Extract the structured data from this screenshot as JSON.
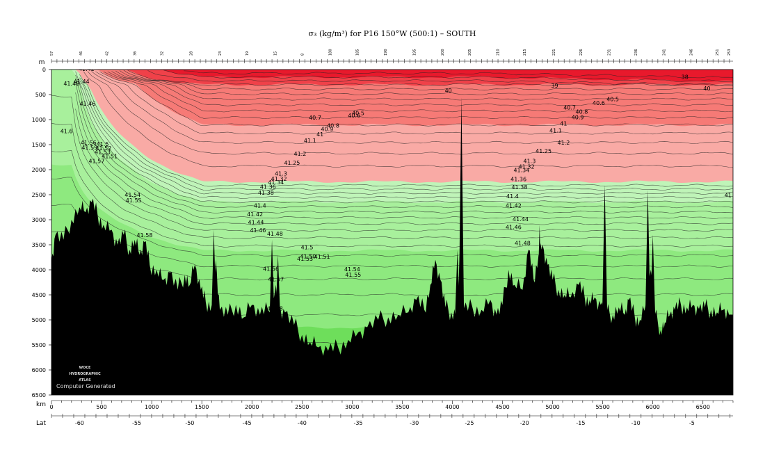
{
  "chart_data": {
    "type": "heatmap",
    "title": "σ₃ (kg/m³) for P16 150°W (500:1) – SOUTH",
    "y_unit": "m",
    "x_unit": "km",
    "lat_axis_label": "Lat",
    "xlim_km": [
      0,
      6800
    ],
    "ylim_m": [
      0,
      6500
    ],
    "depth_ticks": [
      0,
      500,
      1000,
      1500,
      2000,
      2500,
      3000,
      3500,
      4000,
      4500,
      5000,
      5500,
      6000,
      6500
    ],
    "km_ticks": [
      0,
      500,
      1000,
      1500,
      2000,
      2500,
      3000,
      3500,
      4000,
      4500,
      5000,
      5500,
      6000,
      6500
    ],
    "lat_ticks": [
      {
        "km": 280,
        "label": "-60"
      },
      {
        "km": 850,
        "label": "-55"
      },
      {
        "km": 1380,
        "label": "-50"
      },
      {
        "km": 1950,
        "label": "-45"
      },
      {
        "km": 2500,
        "label": "-40"
      },
      {
        "km": 3060,
        "label": "-35"
      },
      {
        "km": 3620,
        "label": "-30"
      },
      {
        "km": 4170,
        "label": "-25"
      },
      {
        "km": 4720,
        "label": "-20"
      },
      {
        "km": 5280,
        "label": "-15"
      },
      {
        "km": 5830,
        "label": "-10"
      },
      {
        "km": 6390,
        "label": "-5"
      }
    ],
    "stations": [
      {
        "km": 0,
        "label": "57"
      },
      {
        "km": 290,
        "label": "46"
      },
      {
        "km": 550,
        "label": "42"
      },
      {
        "km": 830,
        "label": "36"
      },
      {
        "km": 1100,
        "label": "32"
      },
      {
        "km": 1390,
        "label": "28"
      },
      {
        "km": 1680,
        "label": "23"
      },
      {
        "km": 1950,
        "label": "19"
      },
      {
        "km": 2230,
        "label": "15"
      },
      {
        "km": 2500,
        "label": "8"
      },
      {
        "km": 2780,
        "label": "180"
      },
      {
        "km": 3050,
        "label": "185"
      },
      {
        "km": 3330,
        "label": "190"
      },
      {
        "km": 3620,
        "label": "195"
      },
      {
        "km": 3900,
        "label": "200"
      },
      {
        "km": 4170,
        "label": "205"
      },
      {
        "km": 4450,
        "label": "210"
      },
      {
        "km": 4720,
        "label": "215"
      },
      {
        "km": 5010,
        "label": "221"
      },
      {
        "km": 5280,
        "label": "226"
      },
      {
        "km": 5560,
        "label": "231"
      },
      {
        "km": 5830,
        "label": "236"
      },
      {
        "km": 6110,
        "label": "241"
      },
      {
        "km": 6380,
        "label": "246"
      },
      {
        "km": 6640,
        "label": "251"
      },
      {
        "km": 6760,
        "label": "253"
      }
    ],
    "color_bands": [
      {
        "sigma_max": 39.0,
        "color": "#e8192c"
      },
      {
        "sigma_max": 40.0,
        "color": "#f04149"
      },
      {
        "sigma_max": 40.7,
        "color": "#f67a76"
      },
      {
        "sigma_max": 41.2,
        "color": "#f9aaa5"
      },
      {
        "sigma_max": 41.3,
        "color": "#bff4b8"
      },
      {
        "sigma_max": 41.45,
        "color": "#a8f09c"
      },
      {
        "sigma_max": 41.55,
        "color": "#8ee97f"
      },
      {
        "sigma_max": 99,
        "color": "#6ede5b"
      }
    ],
    "contour_labels": [
      {
        "km": 350,
        "m": 30,
        "text": "41.42"
      },
      {
        "km": 300,
        "m": 280,
        "text": "41.44"
      },
      {
        "km": 200,
        "m": 320,
        "text": "41.48"
      },
      {
        "km": 360,
        "m": 720,
        "text": "41.46"
      },
      {
        "km": 150,
        "m": 1270,
        "text": "41.6"
      },
      {
        "km": 370,
        "m": 1500,
        "text": "41.56"
      },
      {
        "km": 510,
        "m": 1530,
        "text": "41.5"
      },
      {
        "km": 380,
        "m": 1600,
        "text": "41.59"
      },
      {
        "km": 520,
        "m": 1610,
        "text": "41.52"
      },
      {
        "km": 510,
        "m": 1690,
        "text": "41.53"
      },
      {
        "km": 580,
        "m": 1770,
        "text": "41.51"
      },
      {
        "km": 450,
        "m": 1870,
        "text": "41.57"
      },
      {
        "km": 810,
        "m": 2540,
        "text": "41.54"
      },
      {
        "km": 820,
        "m": 2650,
        "text": "41.55"
      },
      {
        "km": 930,
        "m": 3350,
        "text": "41.58"
      },
      {
        "km": 2630,
        "m": 1000,
        "text": "40.7"
      },
      {
        "km": 3060,
        "m": 910,
        "text": "40.5"
      },
      {
        "km": 3020,
        "m": 960,
        "text": "40.6"
      },
      {
        "km": 2810,
        "m": 1160,
        "text": "40.8"
      },
      {
        "km": 2750,
        "m": 1230,
        "text": "40.9"
      },
      {
        "km": 2680,
        "m": 1330,
        "text": "41"
      },
      {
        "km": 2580,
        "m": 1460,
        "text": "41.1"
      },
      {
        "km": 2480,
        "m": 1720,
        "text": "41.2"
      },
      {
        "km": 2400,
        "m": 1900,
        "text": "41.25"
      },
      {
        "km": 2290,
        "m": 2120,
        "text": "41.3"
      },
      {
        "km": 2270,
        "m": 2220,
        "text": "41.32"
      },
      {
        "km": 2240,
        "m": 2290,
        "text": "41.34"
      },
      {
        "km": 2160,
        "m": 2380,
        "text": "41.36"
      },
      {
        "km": 2140,
        "m": 2500,
        "text": "41.38"
      },
      {
        "km": 2080,
        "m": 2760,
        "text": "41.4"
      },
      {
        "km": 2030,
        "m": 2930,
        "text": "41.42"
      },
      {
        "km": 2040,
        "m": 3090,
        "text": "41.44"
      },
      {
        "km": 2060,
        "m": 3250,
        "text": "41.46"
      },
      {
        "km": 2230,
        "m": 3320,
        "text": "41.48"
      },
      {
        "km": 2550,
        "m": 3590,
        "text": "41.5"
      },
      {
        "km": 2560,
        "m": 3770,
        "text": "41.50"
      },
      {
        "km": 2700,
        "m": 3780,
        "text": "41.51"
      },
      {
        "km": 2530,
        "m": 3820,
        "text": "41.53"
      },
      {
        "km": 2190,
        "m": 4020,
        "text": "41.56"
      },
      {
        "km": 2240,
        "m": 4230,
        "text": "41.57"
      },
      {
        "km": 3000,
        "m": 4030,
        "text": "41.54"
      },
      {
        "km": 3010,
        "m": 4140,
        "text": "41.55"
      },
      {
        "km": 2230,
        "m": 4810,
        "text": "41.58"
      },
      {
        "km": 3960,
        "m": 460,
        "text": "40"
      },
      {
        "km": 5020,
        "m": 360,
        "text": "39"
      },
      {
        "km": 6320,
        "m": 190,
        "text": "38"
      },
      {
        "km": 6540,
        "m": 420,
        "text": "40"
      },
      {
        "km": 5600,
        "m": 630,
        "text": "40.5"
      },
      {
        "km": 5460,
        "m": 710,
        "text": "40.6"
      },
      {
        "km": 5170,
        "m": 800,
        "text": "40.7"
      },
      {
        "km": 5290,
        "m": 880,
        "text": "40.8"
      },
      {
        "km": 5250,
        "m": 990,
        "text": "40.9"
      },
      {
        "km": 5110,
        "m": 1120,
        "text": "41"
      },
      {
        "km": 5030,
        "m": 1260,
        "text": "41.1"
      },
      {
        "km": 5110,
        "m": 1500,
        "text": "41.2"
      },
      {
        "km": 4910,
        "m": 1670,
        "text": "41.25"
      },
      {
        "km": 4770,
        "m": 1870,
        "text": "41.3"
      },
      {
        "km": 4740,
        "m": 1980,
        "text": "41.32"
      },
      {
        "km": 4690,
        "m": 2050,
        "text": "41.34"
      },
      {
        "km": 4660,
        "m": 2230,
        "text": "41.36"
      },
      {
        "km": 4670,
        "m": 2390,
        "text": "41.38"
      },
      {
        "km": 4600,
        "m": 2570,
        "text": "41.4"
      },
      {
        "km": 4610,
        "m": 2760,
        "text": "41.42"
      },
      {
        "km": 4680,
        "m": 3030,
        "text": "41.44"
      },
      {
        "km": 4610,
        "m": 3190,
        "text": "41.46"
      },
      {
        "km": 4700,
        "m": 3510,
        "text": "41.48"
      },
      {
        "km": 6750,
        "m": 2550,
        "text": "41"
      }
    ],
    "sea_floor_profile_m": [
      [
        0,
        3800
      ],
      [
        40,
        3300
      ],
      [
        120,
        3400
      ],
      [
        200,
        3000
      ],
      [
        280,
        2750
      ],
      [
        340,
        2850
      ],
      [
        400,
        2650
      ],
      [
        460,
        2900
      ],
      [
        520,
        3100
      ],
      [
        600,
        3200
      ],
      [
        660,
        3500
      ],
      [
        720,
        3300
      ],
      [
        780,
        3600
      ],
      [
        830,
        3400
      ],
      [
        880,
        3700
      ],
      [
        930,
        3450
      ],
      [
        980,
        3900
      ],
      [
        1050,
        4000
      ],
      [
        1120,
        4200
      ],
      [
        1180,
        4050
      ],
      [
        1260,
        4400
      ],
      [
        1330,
        4100
      ],
      [
        1380,
        4300
      ],
      [
        1430,
        3900
      ],
      [
        1490,
        4400
      ],
      [
        1540,
        4650
      ],
      [
        1600,
        4700
      ],
      [
        1640,
        3800
      ],
      [
        1680,
        4800
      ],
      [
        1760,
        4900
      ],
      [
        1840,
        4700
      ],
      [
        1920,
        4950
      ],
      [
        2000,
        4700
      ],
      [
        2080,
        4900
      ],
      [
        2160,
        4800
      ],
      [
        2240,
        4300
      ],
      [
        2270,
        4750
      ],
      [
        2330,
        4850
      ],
      [
        2420,
        5100
      ],
      [
        2500,
        5300
      ],
      [
        2580,
        5450
      ],
      [
        2660,
        5550
      ],
      [
        2760,
        5620
      ],
      [
        2860,
        5550
      ],
      [
        2960,
        5400
      ],
      [
        3060,
        5250
      ],
      [
        3150,
        5150
      ],
      [
        3260,
        5000
      ],
      [
        3360,
        4950
      ],
      [
        3460,
        4900
      ],
      [
        3560,
        4850
      ],
      [
        3640,
        4600
      ],
      [
        3720,
        4800
      ],
      [
        3780,
        4300
      ],
      [
        3830,
        3800
      ],
      [
        3880,
        4200
      ],
      [
        3930,
        4750
      ],
      [
        3990,
        4850
      ],
      [
        4050,
        4900
      ],
      [
        4090,
        3000
      ],
      [
        4110,
        4800
      ],
      [
        4200,
        4750
      ],
      [
        4290,
        4800
      ],
      [
        4380,
        4600
      ],
      [
        4440,
        4900
      ],
      [
        4500,
        4700
      ],
      [
        4560,
        4000
      ],
      [
        4620,
        4300
      ],
      [
        4700,
        4400
      ],
      [
        4760,
        3600
      ],
      [
        4810,
        4200
      ],
      [
        4860,
        3700
      ],
      [
        4900,
        3500
      ],
      [
        4950,
        3900
      ],
      [
        5000,
        4200
      ],
      [
        5060,
        4400
      ],
      [
        5120,
        4500
      ],
      [
        5180,
        4550
      ],
      [
        5260,
        4300
      ],
      [
        5320,
        4550
      ],
      [
        5370,
        4600
      ],
      [
        5420,
        4550
      ],
      [
        5480,
        4700
      ],
      [
        5540,
        4850
      ],
      [
        5600,
        4900
      ],
      [
        5660,
        4750
      ],
      [
        5720,
        4900
      ],
      [
        5760,
        4600
      ],
      [
        5820,
        4950
      ],
      [
        5870,
        5000
      ],
      [
        5930,
        4700
      ],
      [
        5980,
        4000
      ],
      [
        6020,
        4900
      ],
      [
        6080,
        5200
      ],
      [
        6120,
        5050
      ],
      [
        6170,
        4900
      ],
      [
        6220,
        4800
      ],
      [
        6280,
        4700
      ],
      [
        6340,
        4750
      ],
      [
        6400,
        4700
      ],
      [
        6460,
        4780
      ],
      [
        6520,
        4750
      ],
      [
        6580,
        4800
      ],
      [
        6640,
        4850
      ],
      [
        6700,
        4800
      ],
      [
        6760,
        4900
      ]
    ],
    "sea_floor_spikes": [
      {
        "km": 1620,
        "top_m": 3200
      },
      {
        "km": 2200,
        "top_m": 3400
      },
      {
        "km": 2260,
        "top_m": 3700
      },
      {
        "km": 4090,
        "top_m": 550
      },
      {
        "km": 4050,
        "top_m": 3600
      },
      {
        "km": 5520,
        "top_m": 2300
      },
      {
        "km": 5950,
        "top_m": 2400
      },
      {
        "km": 6000,
        "top_m": 3300
      },
      {
        "km": 4870,
        "top_m": 3100
      }
    ]
  },
  "logo": {
    "line1": "WOCE",
    "line2": "HYDROGRAPHIC",
    "line3": "ATLAS"
  },
  "credit": "Computer Generated"
}
